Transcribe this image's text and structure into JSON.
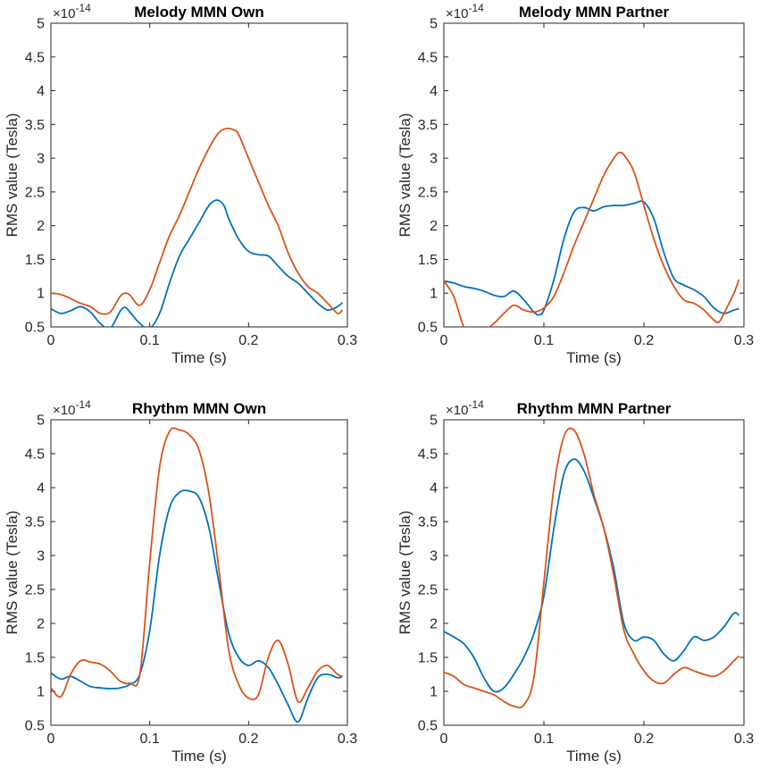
{
  "figure": {
    "exponent_base": "×10",
    "exponent_power": "-14",
    "colors": {
      "series_a": "#0072BD",
      "series_b": "#D95319",
      "axis": "#262626"
    }
  },
  "chart_data": [
    {
      "type": "line",
      "title": "Melody MMN Own",
      "xlabel": "Time (s)",
      "ylabel": "RMS value (Tesla)",
      "xlim": [
        0,
        0.3
      ],
      "ylim": [
        0.5,
        5
      ],
      "xticks": [
        "0",
        "0.1",
        "0.2",
        "0.3"
      ],
      "yticks": [
        "0.5",
        "1",
        "1.5",
        "2",
        "2.5",
        "3",
        "3.5",
        "4",
        "4.5",
        "5"
      ],
      "series": [
        {
          "name": "series-blue",
          "color": "#0072BD",
          "x": [
            0,
            0.01,
            0.02,
            0.03,
            0.04,
            0.05,
            0.06,
            0.07,
            0.075,
            0.08,
            0.09,
            0.1,
            0.11,
            0.12,
            0.13,
            0.14,
            0.15,
            0.16,
            0.168,
            0.175,
            0.18,
            0.19,
            0.2,
            0.21,
            0.22,
            0.23,
            0.24,
            0.25,
            0.26,
            0.27,
            0.28,
            0.29,
            0.295
          ],
          "y": [
            0.77,
            0.7,
            0.74,
            0.8,
            0.72,
            0.55,
            0.48,
            0.73,
            0.79,
            0.72,
            0.55,
            0.48,
            0.7,
            1.15,
            1.55,
            1.8,
            2.05,
            2.3,
            2.38,
            2.3,
            2.1,
            1.8,
            1.62,
            1.57,
            1.55,
            1.4,
            1.25,
            1.15,
            1.0,
            0.85,
            0.75,
            0.8,
            0.86
          ]
        },
        {
          "name": "series-orange",
          "color": "#D95319",
          "x": [
            0,
            0.01,
            0.02,
            0.03,
            0.04,
            0.05,
            0.06,
            0.07,
            0.075,
            0.08,
            0.09,
            0.1,
            0.11,
            0.12,
            0.13,
            0.14,
            0.15,
            0.16,
            0.17,
            0.178,
            0.185,
            0.19,
            0.2,
            0.21,
            0.22,
            0.23,
            0.24,
            0.25,
            0.26,
            0.27,
            0.28,
            0.29,
            0.295
          ],
          "y": [
            1.0,
            0.98,
            0.92,
            0.85,
            0.8,
            0.7,
            0.72,
            0.95,
            1.0,
            0.97,
            0.82,
            1.05,
            1.45,
            1.85,
            2.15,
            2.5,
            2.85,
            3.15,
            3.38,
            3.44,
            3.42,
            3.35,
            3.0,
            2.65,
            2.3,
            2.0,
            1.6,
            1.3,
            1.1,
            1.0,
            0.85,
            0.7,
            0.75
          ]
        }
      ]
    },
    {
      "type": "line",
      "title": "Melody MMN Partner",
      "xlabel": "Time (s)",
      "ylabel": "RMS value (Tesla)",
      "xlim": [
        0,
        0.3
      ],
      "ylim": [
        0.5,
        5
      ],
      "xticks": [
        "0",
        "0.1",
        "0.2",
        "0.3"
      ],
      "yticks": [
        "0.5",
        "1",
        "1.5",
        "2",
        "2.5",
        "3",
        "3.5",
        "4",
        "4.5",
        "5"
      ],
      "series": [
        {
          "name": "series-blue",
          "color": "#0072BD",
          "x": [
            0,
            0.01,
            0.02,
            0.03,
            0.04,
            0.05,
            0.06,
            0.07,
            0.08,
            0.09,
            0.095,
            0.1,
            0.11,
            0.12,
            0.13,
            0.14,
            0.15,
            0.16,
            0.17,
            0.18,
            0.19,
            0.2,
            0.21,
            0.22,
            0.23,
            0.24,
            0.25,
            0.26,
            0.27,
            0.28,
            0.29,
            0.295
          ],
          "y": [
            1.18,
            1.15,
            1.1,
            1.07,
            1.03,
            0.97,
            0.95,
            1.03,
            0.9,
            0.72,
            0.68,
            0.75,
            1.2,
            1.8,
            2.2,
            2.27,
            2.22,
            2.28,
            2.3,
            2.3,
            2.33,
            2.35,
            2.1,
            1.6,
            1.22,
            1.12,
            1.05,
            0.95,
            0.78,
            0.7,
            0.75,
            0.77
          ]
        },
        {
          "name": "series-orange",
          "color": "#D95319",
          "x": [
            0,
            0.01,
            0.02,
            0.03,
            0.04,
            0.05,
            0.06,
            0.07,
            0.08,
            0.09,
            0.1,
            0.11,
            0.12,
            0.13,
            0.14,
            0.15,
            0.16,
            0.17,
            0.175,
            0.18,
            0.19,
            0.2,
            0.21,
            0.22,
            0.23,
            0.24,
            0.25,
            0.26,
            0.27,
            0.275,
            0.28,
            0.29,
            0.295
          ],
          "y": [
            1.18,
            0.95,
            0.5,
            0.4,
            0.45,
            0.55,
            0.7,
            0.82,
            0.75,
            0.72,
            0.78,
            0.95,
            1.3,
            1.7,
            2.05,
            2.4,
            2.75,
            3.0,
            3.08,
            3.05,
            2.8,
            2.3,
            1.8,
            1.4,
            1.1,
            0.9,
            0.85,
            0.75,
            0.6,
            0.57,
            0.7,
            1.0,
            1.2
          ]
        }
      ]
    },
    {
      "type": "line",
      "title": "Rhythm MMN Own",
      "xlabel": "Time (s)",
      "ylabel": "RMS value (Tesla)",
      "xlim": [
        0,
        0.3
      ],
      "ylim": [
        0.5,
        5
      ],
      "xticks": [
        "0",
        "0.1",
        "0.2",
        "0.3"
      ],
      "yticks": [
        "0.5",
        "1",
        "1.5",
        "2",
        "2.5",
        "3",
        "3.5",
        "4",
        "4.5",
        "5"
      ],
      "series": [
        {
          "name": "series-blue",
          "color": "#0072BD",
          "x": [
            0,
            0.01,
            0.02,
            0.03,
            0.04,
            0.05,
            0.06,
            0.07,
            0.08,
            0.09,
            0.1,
            0.11,
            0.12,
            0.13,
            0.14,
            0.15,
            0.16,
            0.17,
            0.18,
            0.19,
            0.2,
            0.21,
            0.22,
            0.23,
            0.24,
            0.25,
            0.26,
            0.27,
            0.28,
            0.29,
            0.295
          ],
          "y": [
            1.27,
            1.18,
            1.22,
            1.15,
            1.07,
            1.05,
            1.04,
            1.05,
            1.1,
            1.25,
            1.9,
            3.0,
            3.7,
            3.93,
            3.95,
            3.85,
            3.4,
            2.6,
            1.85,
            1.5,
            1.38,
            1.45,
            1.35,
            1.1,
            0.8,
            0.55,
            0.9,
            1.2,
            1.25,
            1.2,
            1.22
          ]
        },
        {
          "name": "series-orange",
          "color": "#D95319",
          "x": [
            0,
            0.01,
            0.02,
            0.03,
            0.04,
            0.05,
            0.06,
            0.07,
            0.08,
            0.09,
            0.1,
            0.11,
            0.12,
            0.13,
            0.14,
            0.15,
            0.16,
            0.17,
            0.18,
            0.19,
            0.2,
            0.21,
            0.22,
            0.23,
            0.24,
            0.25,
            0.26,
            0.27,
            0.28,
            0.29,
            0.295
          ],
          "y": [
            1.05,
            0.92,
            1.25,
            1.45,
            1.43,
            1.4,
            1.3,
            1.15,
            1.12,
            1.25,
            2.9,
            4.3,
            4.83,
            4.85,
            4.78,
            4.55,
            3.9,
            2.8,
            1.6,
            1.1,
            0.9,
            0.95,
            1.5,
            1.75,
            1.4,
            0.85,
            1.05,
            1.3,
            1.38,
            1.25,
            1.22
          ]
        }
      ]
    },
    {
      "type": "line",
      "title": "Rhythm MMN Partner",
      "xlabel": "Time (s)",
      "ylabel": "RMS value (Tesla)",
      "xlim": [
        0,
        0.3
      ],
      "ylim": [
        0.5,
        5
      ],
      "xticks": [
        "0",
        "0.1",
        "0.2",
        "0.3"
      ],
      "yticks": [
        "0.5",
        "1",
        "1.5",
        "2",
        "2.5",
        "3",
        "3.5",
        "4",
        "4.5",
        "5"
      ],
      "series": [
        {
          "name": "series-blue",
          "color": "#0072BD",
          "x": [
            0,
            0.01,
            0.02,
            0.03,
            0.04,
            0.05,
            0.06,
            0.07,
            0.08,
            0.09,
            0.1,
            0.11,
            0.12,
            0.13,
            0.14,
            0.15,
            0.16,
            0.17,
            0.18,
            0.19,
            0.2,
            0.21,
            0.22,
            0.23,
            0.24,
            0.25,
            0.26,
            0.27,
            0.28,
            0.29,
            0.295
          ],
          "y": [
            1.88,
            1.8,
            1.7,
            1.5,
            1.2,
            1.0,
            1.05,
            1.25,
            1.5,
            1.85,
            2.4,
            3.4,
            4.2,
            4.42,
            4.25,
            3.85,
            3.4,
            2.8,
            2.0,
            1.75,
            1.8,
            1.75,
            1.55,
            1.45,
            1.6,
            1.8,
            1.75,
            1.8,
            1.95,
            2.15,
            2.12
          ]
        },
        {
          "name": "series-orange",
          "color": "#D95319",
          "x": [
            0,
            0.01,
            0.02,
            0.03,
            0.04,
            0.05,
            0.06,
            0.07,
            0.08,
            0.09,
            0.1,
            0.11,
            0.12,
            0.13,
            0.14,
            0.15,
            0.16,
            0.17,
            0.18,
            0.19,
            0.2,
            0.21,
            0.22,
            0.23,
            0.24,
            0.25,
            0.26,
            0.27,
            0.28,
            0.29,
            0.295
          ],
          "y": [
            1.28,
            1.22,
            1.1,
            1.05,
            1.0,
            0.95,
            0.85,
            0.78,
            0.8,
            1.2,
            2.6,
            4.0,
            4.75,
            4.85,
            4.5,
            3.9,
            3.4,
            2.7,
            1.9,
            1.55,
            1.3,
            1.15,
            1.12,
            1.25,
            1.35,
            1.3,
            1.25,
            1.22,
            1.3,
            1.45,
            1.52
          ]
        }
      ]
    }
  ]
}
